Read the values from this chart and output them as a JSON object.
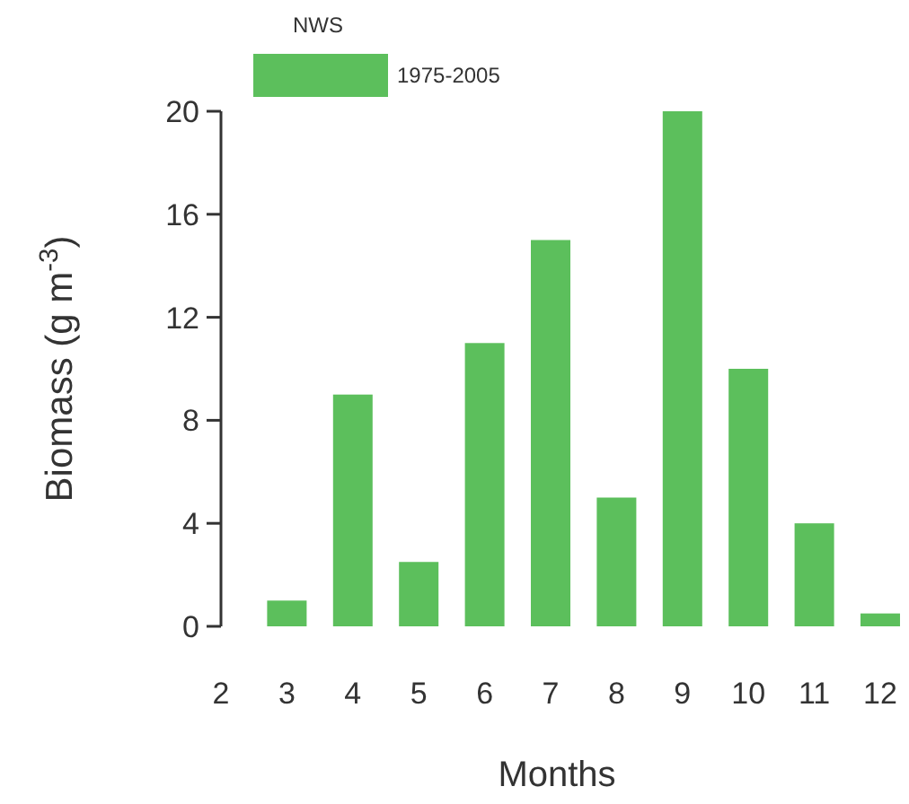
{
  "chart_data": {
    "type": "bar",
    "xlabel": "Months",
    "ylabel": "Biomass (g m$^{-3}$)",
    "legend_title": "NWS",
    "categories": [
      "2",
      "3",
      "4",
      "5",
      "6",
      "7",
      "8",
      "9",
      "10",
      "11",
      "12"
    ],
    "series": [
      {
        "name": "1975-2005",
        "color": "#5cbf5c",
        "values": [
          null,
          1,
          9,
          2.5,
          11,
          15,
          5,
          20,
          10,
          4,
          0.5
        ]
      }
    ],
    "ylim": [
      0,
      20
    ],
    "yticks": [
      0,
      4,
      8,
      12,
      16,
      20
    ],
    "grid": false,
    "legend": "top"
  }
}
